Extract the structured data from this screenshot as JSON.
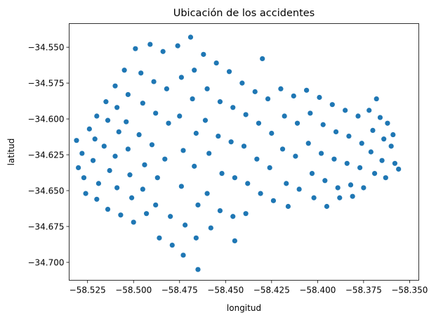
{
  "chart_data": {
    "type": "scatter",
    "title": "Ubicación de los accidentes",
    "xlabel": "longitud",
    "ylabel": "latitud",
    "xlim": [
      -58.535,
      -58.345
    ],
    "ylim": [
      -34.7125,
      -34.5335
    ],
    "xticks": [
      -58.525,
      -58.5,
      -58.475,
      -58.45,
      -58.425,
      -58.4,
      -58.375,
      -58.35
    ],
    "xtick_labels": [
      "−58.525",
      "−58.500",
      "−58.475",
      "−58.450",
      "−58.425",
      "−58.400",
      "−58.375",
      "−58.350"
    ],
    "yticks": [
      -34.55,
      -34.575,
      -34.6,
      -34.625,
      -34.65,
      -34.675,
      -34.7
    ],
    "ytick_labels": [
      "−34.550",
      "−34.575",
      "−34.600",
      "−34.625",
      "−34.650",
      "−34.675",
      "−34.700"
    ],
    "grid": false,
    "marker_color": "#1f77b4",
    "series": [
      {
        "points": [
          [
            -58.531,
            -34.615
          ],
          [
            -58.528,
            -34.624
          ],
          [
            -58.53,
            -34.634
          ],
          [
            -58.527,
            -34.641
          ],
          [
            -58.526,
            -34.652
          ],
          [
            -58.524,
            -34.607
          ],
          [
            -58.52,
            -34.598
          ],
          [
            -58.521,
            -34.614
          ],
          [
            -58.522,
            -34.629
          ],
          [
            -58.519,
            -34.645
          ],
          [
            -58.52,
            -34.656
          ],
          [
            -58.515,
            -34.588
          ],
          [
            -58.514,
            -34.601
          ],
          [
            -58.516,
            -34.619
          ],
          [
            -58.513,
            -34.636
          ],
          [
            -58.514,
            -34.663
          ],
          [
            -58.51,
            -34.577
          ],
          [
            -58.509,
            -34.592
          ],
          [
            -58.508,
            -34.609
          ],
          [
            -58.51,
            -34.626
          ],
          [
            -58.509,
            -34.648
          ],
          [
            -58.507,
            -34.667
          ],
          [
            -58.505,
            -34.566
          ],
          [
            -58.503,
            -34.583
          ],
          [
            -58.504,
            -34.602
          ],
          [
            -58.503,
            -34.621
          ],
          [
            -58.502,
            -34.639
          ],
          [
            -58.501,
            -34.655
          ],
          [
            -58.5,
            -34.672
          ],
          [
            -58.499,
            -34.551
          ],
          [
            -58.496,
            -34.568
          ],
          [
            -58.495,
            -34.589
          ],
          [
            -58.497,
            -34.611
          ],
          [
            -58.494,
            -34.632
          ],
          [
            -58.495,
            -34.649
          ],
          [
            -58.493,
            -34.666
          ],
          [
            -58.491,
            -34.548
          ],
          [
            -58.489,
            -34.574
          ],
          [
            -58.488,
            -34.596
          ],
          [
            -58.49,
            -34.618
          ],
          [
            -58.487,
            -34.641
          ],
          [
            -58.488,
            -34.66
          ],
          [
            -58.486,
            -34.683
          ],
          [
            -58.484,
            -34.553
          ],
          [
            -58.482,
            -34.579
          ],
          [
            -58.481,
            -34.603
          ],
          [
            -58.483,
            -34.628
          ],
          [
            -58.48,
            -34.668
          ],
          [
            -58.479,
            -34.688
          ],
          [
            -58.476,
            -34.549
          ],
          [
            -58.474,
            -34.571
          ],
          [
            -58.475,
            -34.598
          ],
          [
            -58.473,
            -34.622
          ],
          [
            -58.474,
            -34.647
          ],
          [
            -58.472,
            -34.674
          ],
          [
            -58.473,
            -34.695
          ],
          [
            -58.469,
            -34.543
          ],
          [
            -58.467,
            -34.566
          ],
          [
            -58.468,
            -34.586
          ],
          [
            -58.466,
            -34.61
          ],
          [
            -58.467,
            -34.633
          ],
          [
            -58.465,
            -34.66
          ],
          [
            -58.466,
            -34.683
          ],
          [
            -58.465,
            -34.705
          ],
          [
            -58.462,
            -34.555
          ],
          [
            -58.46,
            -34.579
          ],
          [
            -58.461,
            -34.601
          ],
          [
            -58.459,
            -34.624
          ],
          [
            -58.46,
            -34.652
          ],
          [
            -58.458,
            -34.676
          ],
          [
            -58.455,
            -34.561
          ],
          [
            -58.453,
            -34.588
          ],
          [
            -58.454,
            -34.612
          ],
          [
            -58.452,
            -34.638
          ],
          [
            -58.453,
            -34.664
          ],
          [
            -58.448,
            -34.567
          ],
          [
            -58.446,
            -34.592
          ],
          [
            -58.447,
            -34.616
          ],
          [
            -58.445,
            -34.641
          ],
          [
            -58.446,
            -34.668
          ],
          [
            -58.445,
            -34.685
          ],
          [
            -58.441,
            -34.575
          ],
          [
            -58.439,
            -34.597
          ],
          [
            -58.44,
            -34.619
          ],
          [
            -58.438,
            -34.645
          ],
          [
            -58.439,
            -34.666
          ],
          [
            -58.434,
            -34.581
          ],
          [
            -58.432,
            -34.603
          ],
          [
            -58.433,
            -34.628
          ],
          [
            -58.431,
            -34.652
          ],
          [
            -58.43,
            -34.558
          ],
          [
            -58.427,
            -34.586
          ],
          [
            -58.425,
            -34.61
          ],
          [
            -58.426,
            -34.634
          ],
          [
            -58.424,
            -34.657
          ],
          [
            -58.42,
            -34.579
          ],
          [
            -58.418,
            -34.598
          ],
          [
            -58.419,
            -34.621
          ],
          [
            -58.417,
            -34.645
          ],
          [
            -58.416,
            -34.661
          ],
          [
            -58.413,
            -34.584
          ],
          [
            -58.411,
            -34.603
          ],
          [
            -58.412,
            -34.626
          ],
          [
            -58.41,
            -34.649
          ],
          [
            -58.406,
            -34.58
          ],
          [
            -58.404,
            -34.596
          ],
          [
            -58.405,
            -34.617
          ],
          [
            -58.403,
            -34.638
          ],
          [
            -58.402,
            -34.655
          ],
          [
            -58.399,
            -34.585
          ],
          [
            -58.397,
            -34.604
          ],
          [
            -58.398,
            -34.624
          ],
          [
            -58.396,
            -34.643
          ],
          [
            -58.395,
            -34.661
          ],
          [
            -58.392,
            -34.59
          ],
          [
            -58.39,
            -34.609
          ],
          [
            -58.391,
            -34.628
          ],
          [
            -58.389,
            -34.648
          ],
          [
            -58.388,
            -34.655
          ],
          [
            -58.385,
            -34.594
          ],
          [
            -58.383,
            -34.612
          ],
          [
            -58.384,
            -34.631
          ],
          [
            -58.382,
            -34.646
          ],
          [
            -58.381,
            -34.654
          ],
          [
            -58.378,
            -34.598
          ],
          [
            -58.376,
            -34.617
          ],
          [
            -58.377,
            -34.634
          ],
          [
            -58.375,
            -34.648
          ],
          [
            -58.372,
            -34.594
          ],
          [
            -58.37,
            -34.608
          ],
          [
            -58.371,
            -34.623
          ],
          [
            -58.369,
            -34.638
          ],
          [
            -58.366,
            -34.599
          ],
          [
            -58.364,
            -34.614
          ],
          [
            -58.365,
            -34.629
          ],
          [
            -58.363,
            -34.641
          ],
          [
            -58.36,
            -34.619
          ],
          [
            -58.358,
            -34.631
          ],
          [
            -58.356,
            -34.635
          ],
          [
            -58.368,
            -34.586
          ],
          [
            -58.362,
            -34.603
          ],
          [
            -58.359,
            -34.611
          ]
        ]
      }
    ]
  }
}
